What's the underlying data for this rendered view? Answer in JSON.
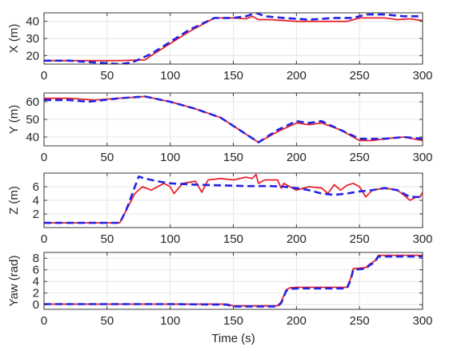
{
  "chart_data": [
    {
      "type": "line",
      "ylabel": "X (m)",
      "xlabel": "",
      "xlim": [
        0,
        300
      ],
      "ylim": [
        15,
        45
      ],
      "xticks": [
        0,
        50,
        100,
        150,
        200,
        250,
        300
      ],
      "yticks": [
        20,
        30,
        40
      ],
      "grid": true,
      "series": [
        {
          "color": "#e8232b",
          "style": "solid",
          "x": [
            0,
            10,
            40,
            60,
            80,
            85,
            100,
            115,
            135,
            150,
            160,
            165,
            170,
            180,
            200,
            220,
            240,
            250,
            270,
            280,
            290,
            300
          ],
          "y": [
            17,
            17,
            17,
            17,
            17.5,
            20,
            27,
            34,
            42,
            42,
            41.5,
            43,
            41,
            41,
            40,
            40,
            40,
            42,
            42,
            41,
            41.5,
            40.5
          ]
        },
        {
          "color": "#2323e8",
          "style": "dashed",
          "x": [
            0,
            20,
            40,
            60,
            70,
            85,
            100,
            115,
            135,
            150,
            160,
            168,
            175,
            190,
            210,
            230,
            245,
            255,
            270,
            285,
            300
          ],
          "y": [
            17,
            17,
            16,
            15,
            16,
            21,
            28,
            35,
            42,
            42,
            43,
            45,
            43,
            42,
            41,
            42,
            42,
            44,
            44,
            43,
            43
          ]
        }
      ]
    },
    {
      "type": "line",
      "ylabel": "Y (m)",
      "xlabel": "",
      "xlim": [
        0,
        300
      ],
      "ylim": [
        35,
        65
      ],
      "xticks": [
        0,
        50,
        100,
        150,
        200,
        250,
        300
      ],
      "yticks": [
        40,
        50,
        60
      ],
      "grid": true,
      "series": [
        {
          "color": "#e8232b",
          "style": "solid",
          "x": [
            0,
            20,
            40,
            60,
            80,
            100,
            120,
            140,
            155,
            170,
            185,
            200,
            210,
            220,
            235,
            250,
            260,
            270,
            285,
            300
          ],
          "y": [
            62,
            62,
            61,
            62,
            63,
            60,
            56,
            51,
            44,
            37,
            43,
            48,
            47,
            48,
            44,
            38,
            38,
            39,
            40,
            38
          ]
        },
        {
          "color": "#2323e8",
          "style": "dashed",
          "x": [
            0,
            20,
            35,
            60,
            80,
            100,
            120,
            140,
            155,
            170,
            185,
            200,
            210,
            220,
            235,
            250,
            260,
            270,
            285,
            300
          ],
          "y": [
            61,
            61,
            60,
            62,
            63,
            60,
            56,
            51,
            44,
            37,
            44,
            49,
            48,
            49,
            44,
            39,
            39,
            39,
            40,
            39
          ]
        }
      ]
    },
    {
      "type": "line",
      "ylabel": "Z (m)",
      "xlabel": "",
      "xlim": [
        0,
        300
      ],
      "ylim": [
        0,
        8
      ],
      "xticks": [
        0,
        50,
        100,
        150,
        200,
        250,
        300
      ],
      "yticks": [
        2,
        4,
        6
      ],
      "grid": true,
      "series": [
        {
          "color": "#e8232b",
          "style": "solid",
          "x": [
            0,
            60,
            65,
            72,
            78,
            85,
            95,
            100,
            103,
            110,
            120,
            125,
            130,
            140,
            150,
            160,
            165,
            168,
            170,
            175,
            185,
            188,
            190,
            200,
            210,
            220,
            225,
            230,
            235,
            240,
            245,
            250,
            255,
            260,
            270,
            280,
            285,
            290,
            295,
            298,
            300
          ],
          "y": [
            0.7,
            0.7,
            2.5,
            5.0,
            6.0,
            5.5,
            6.5,
            6.0,
            5.0,
            6.5,
            6.8,
            5.2,
            7.0,
            7.2,
            7.0,
            7.4,
            7.2,
            7.8,
            6.5,
            7.0,
            7.0,
            5.8,
            6.5,
            5.5,
            6.0,
            5.8,
            5.0,
            6.3,
            5.5,
            6.2,
            6.5,
            6.0,
            4.5,
            5.5,
            5.8,
            5.5,
            4.8,
            4.0,
            4.5,
            4.5,
            5.2
          ]
        },
        {
          "color": "#2323e8",
          "style": "dashed",
          "x": [
            0,
            60,
            65,
            70,
            75,
            80,
            90,
            100,
            120,
            140,
            160,
            180,
            190,
            200,
            210,
            220,
            230,
            240,
            250,
            260,
            270,
            280,
            290,
            300
          ],
          "y": [
            0.7,
            0.7,
            2.5,
            5.0,
            7.5,
            7.2,
            6.8,
            6.5,
            6.3,
            6.2,
            6.1,
            6.1,
            6.0,
            5.8,
            5.5,
            5.0,
            4.8,
            5.0,
            5.3,
            5.5,
            5.8,
            5.5,
            4.5,
            4.5
          ]
        }
      ]
    },
    {
      "type": "line",
      "ylabel": "Yaw (rad)",
      "xlabel": "Time (s)",
      "xlim": [
        0,
        300
      ],
      "ylim": [
        -0.8,
        9
      ],
      "xticks": [
        0,
        50,
        100,
        150,
        200,
        250,
        300
      ],
      "yticks": [
        0,
        2,
        4,
        6,
        8
      ],
      "grid": true,
      "series": [
        {
          "color": "#e8232b",
          "style": "solid",
          "x": [
            0,
            100,
            145,
            150,
            185,
            188,
            192,
            195,
            200,
            240,
            243,
            245,
            250,
            255,
            258,
            262,
            265,
            300
          ],
          "y": [
            0.1,
            0.1,
            0.1,
            -0.2,
            -0.2,
            0.5,
            2.6,
            2.9,
            3.0,
            3.0,
            4.5,
            6.2,
            6.3,
            6.4,
            7.0,
            7.5,
            8.5,
            8.5
          ]
        },
        {
          "color": "#2323e8",
          "style": "dashed",
          "x": [
            0,
            100,
            145,
            150,
            185,
            188,
            192,
            195,
            200,
            240,
            243,
            245,
            250,
            255,
            258,
            262,
            265,
            300
          ],
          "y": [
            0.1,
            0.1,
            0.0,
            -0.3,
            -0.3,
            0.3,
            2.4,
            2.7,
            2.8,
            2.8,
            4.2,
            6.0,
            6.1,
            6.2,
            6.8,
            7.3,
            8.3,
            8.3
          ]
        }
      ]
    }
  ]
}
